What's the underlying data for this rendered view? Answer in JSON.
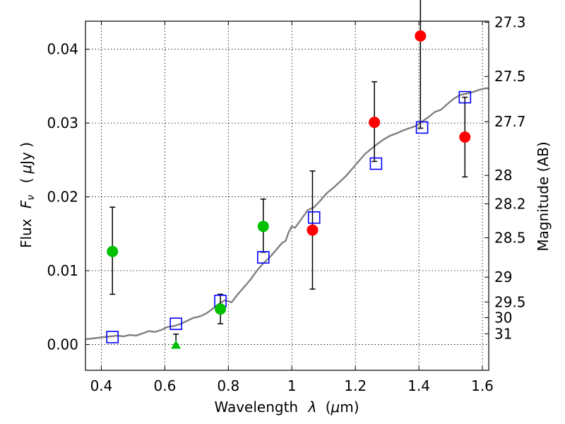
{
  "chart_data": {
    "type": "scatter",
    "xlabel_prefix": "Wavelength",
    "xlabel_symbol": "λ",
    "xlabel_unit_open": "(",
    "xlabel_unit_symbol": "μ",
    "xlabel_unit": "m)",
    "ylabel_prefix": "Flux",
    "ylabel_symbol": "F",
    "ylabel_symbol_sub": "ν",
    "ylabel_unit_open": "(",
    "ylabel_unit_symbol": "μ",
    "ylabel_unit": "Jy )",
    "y2label": "Magnitude (AB)",
    "xlim": [
      0.35,
      1.62
    ],
    "ylim": [
      -0.0035,
      0.0438
    ],
    "grid": true,
    "x_ticks": [
      0.4,
      0.6,
      0.8,
      1.0,
      1.2,
      1.4,
      1.6
    ],
    "x_tick_labels": [
      "0.4",
      "0.6",
      "0.8",
      "1",
      "1.2",
      "1.4",
      "1.6"
    ],
    "y_ticks": [
      0.0,
      0.01,
      0.02,
      0.03,
      0.04
    ],
    "y_tick_labels": [
      "0.00",
      "0.01",
      "0.02",
      "0.03",
      "0.04"
    ],
    "mag_ticks": [
      27.3,
      27.5,
      27.7,
      28,
      28.2,
      28.5,
      29,
      29.5,
      30,
      31
    ],
    "mag_tick_labels": [
      "27.3",
      "27.5",
      "27.7",
      "28",
      "28.2",
      "28.5",
      "29",
      "29.5",
      "30",
      "31"
    ],
    "model_color": "#808080",
    "model_sed": {
      "x": [
        0.35,
        0.37,
        0.39,
        0.41,
        0.43,
        0.45,
        0.47,
        0.49,
        0.51,
        0.53,
        0.55,
        0.57,
        0.59,
        0.61,
        0.63,
        0.65,
        0.67,
        0.69,
        0.71,
        0.73,
        0.75,
        0.77,
        0.79,
        0.81,
        0.83,
        0.85,
        0.87,
        0.89,
        0.91,
        0.93,
        0.95,
        0.97,
        0.98,
        0.99,
        1.0,
        1.01,
        1.03,
        1.05,
        1.07,
        1.09,
        1.11,
        1.13,
        1.15,
        1.17,
        1.19,
        1.21,
        1.23,
        1.25,
        1.27,
        1.29,
        1.31,
        1.33,
        1.35,
        1.37,
        1.39,
        1.41,
        1.43,
        1.45,
        1.47,
        1.49,
        1.51,
        1.53,
        1.55,
        1.57,
        1.59,
        1.61,
        1.62
      ],
      "y": [
        0.0007,
        0.0008,
        0.0009,
        0.001,
        0.0011,
        0.0012,
        0.0011,
        0.0013,
        0.0012,
        0.0015,
        0.0018,
        0.0017,
        0.002,
        0.0024,
        0.0025,
        0.0028,
        0.0032,
        0.0036,
        0.0038,
        0.0042,
        0.0048,
        0.0055,
        0.006,
        0.0057,
        0.0068,
        0.0078,
        0.0088,
        0.01,
        0.011,
        0.0118,
        0.0128,
        0.0138,
        0.014,
        0.0152,
        0.016,
        0.0158,
        0.017,
        0.0182,
        0.0186,
        0.0195,
        0.0205,
        0.0212,
        0.022,
        0.0228,
        0.0238,
        0.0248,
        0.0258,
        0.0265,
        0.0272,
        0.0278,
        0.0283,
        0.0286,
        0.029,
        0.0293,
        0.0296,
        0.0302,
        0.0308,
        0.0315,
        0.0318,
        0.0326,
        0.0333,
        0.0338,
        0.034,
        0.0342,
        0.0345,
        0.0347,
        0.0347
      ]
    },
    "series": [
      {
        "marker": "open-square",
        "color": "#0000ff",
        "x": [
          0.435,
          0.635,
          0.775,
          0.91,
          1.07,
          1.265,
          1.41,
          1.545
        ],
        "y": [
          0.001,
          0.0028,
          0.0059,
          0.0118,
          0.0172,
          0.0245,
          0.0294,
          0.0335
        ]
      },
      {
        "marker": "circle",
        "color": "#00c000",
        "x": [
          0.435,
          0.775,
          0.91
        ],
        "y": [
          0.0126,
          0.0048,
          0.016
        ],
        "err_low": [
          0.0058,
          0.002,
          0.0035
        ],
        "err_high": [
          0.006,
          0.002,
          0.0037
        ]
      },
      {
        "marker": "circle",
        "color": "#ff0000",
        "x": [
          1.065,
          1.26,
          1.405,
          1.545
        ],
        "y": [
          0.0155,
          0.0301,
          0.0418,
          0.0281
        ],
        "err_low": [
          0.008,
          0.0053,
          0.0125,
          0.0054
        ],
        "err_high": [
          0.008,
          0.0055,
          0.0065,
          0.0054
        ]
      },
      {
        "marker": "triangle",
        "color": "#00c000",
        "x": [
          0.635
        ],
        "y": [
          0.0
        ],
        "err_high": [
          0.0014
        ]
      }
    ]
  }
}
